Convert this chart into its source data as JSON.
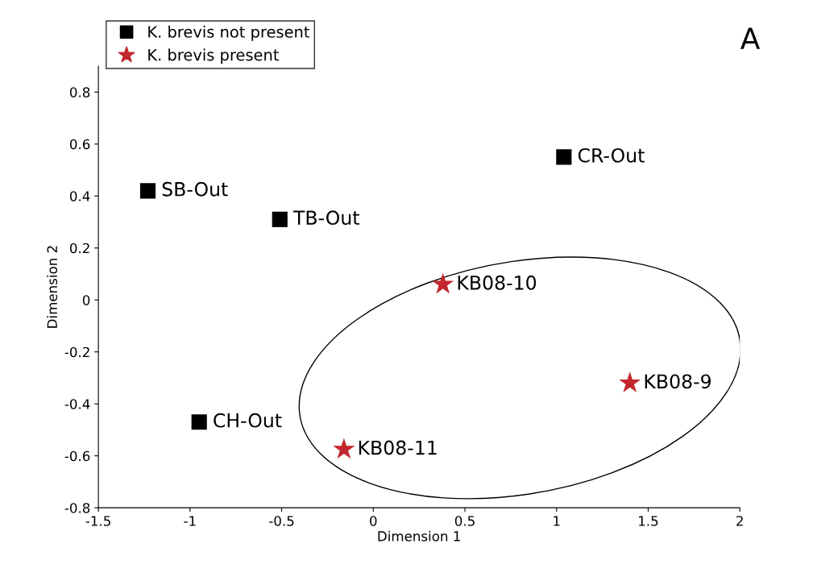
{
  "chart_data": {
    "type": "scatter",
    "xlabel": "Dimension 1",
    "ylabel": "Dimension 2",
    "xlim": [
      -1.5,
      2
    ],
    "xticks": [
      -1.5,
      -1,
      -0.5,
      0,
      0.5,
      1,
      1.5,
      2
    ],
    "ylim": [
      -0.8,
      0.9
    ],
    "yticks": [
      -0.8,
      -0.6,
      -0.4,
      -0.2,
      0,
      0.2,
      0.4,
      0.6,
      0.8
    ],
    "grid": false,
    "legend": "top left",
    "series": [
      {
        "name": "K. brevis not present",
        "color": "#000000",
        "marker": "square",
        "x": [
          -1.23,
          -0.51,
          1.04,
          -0.95
        ],
        "values": [
          0.42,
          0.31,
          0.55,
          -0.47
        ]
      },
      {
        "name": "K. brevis present",
        "color": "#c1272d",
        "marker": "star",
        "x": [
          0.38,
          1.4,
          -0.16
        ],
        "values": [
          0.06,
          -0.32,
          -0.575
        ]
      }
    ],
    "annotations": [
      {
        "text": "SB-Out",
        "x": -1.23,
        "y": 0.42
      },
      {
        "text": "TB-Out",
        "x": -0.51,
        "y": 0.31
      },
      {
        "text": "CR-Out",
        "x": 1.04,
        "y": 0.55
      },
      {
        "text": "CH-Out",
        "x": -0.95,
        "y": -0.47
      },
      {
        "text": "KB08-10",
        "x": 0.38,
        "y": 0.06
      },
      {
        "text": "KB08-9",
        "x": 1.4,
        "y": -0.32
      },
      {
        "text": "KB08-11",
        "x": -0.16,
        "y": -0.575
      },
      "A"
    ]
  }
}
